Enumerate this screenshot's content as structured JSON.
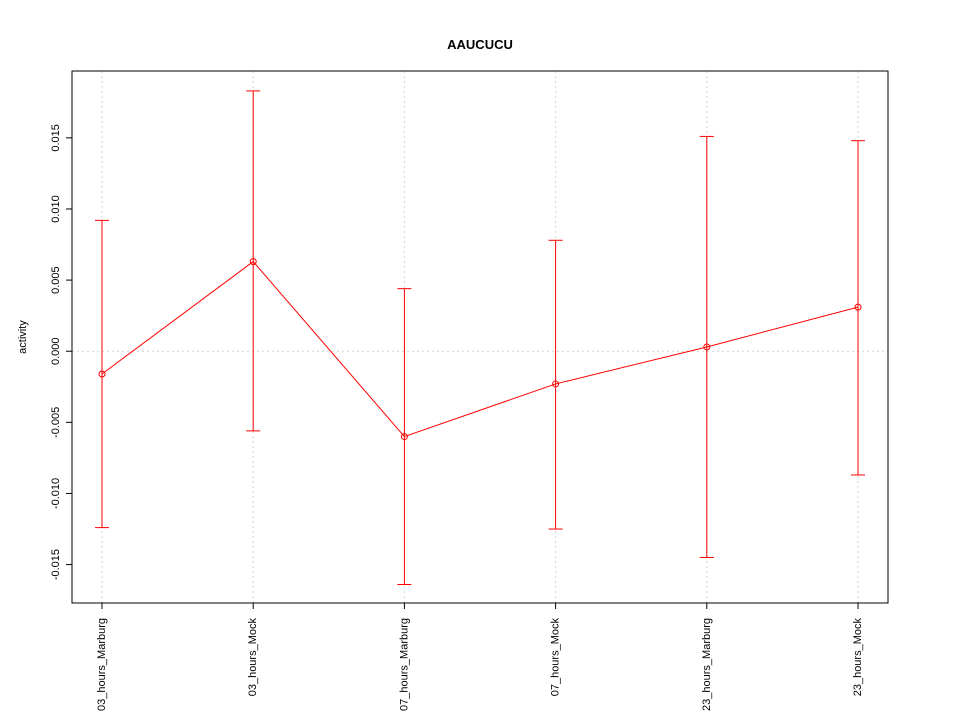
{
  "chart_data": {
    "type": "line",
    "title": "AAUCUCU",
    "xlabel": "",
    "ylabel": "activity",
    "categories": [
      "03_hours_Marburg",
      "03_hours_Mock",
      "07_hours_Marburg",
      "07_hours_Mock",
      "23_hours_Marburg",
      "23_hours_Mock"
    ],
    "series": [
      {
        "values": [
          -0.0016,
          0.0063,
          -0.006,
          -0.0023,
          0.0003,
          0.0031
        ],
        "error_low": [
          -0.0124,
          -0.0056,
          -0.0164,
          -0.0125,
          -0.0145,
          -0.0087
        ],
        "error_high": [
          0.0092,
          0.0183,
          0.0044,
          0.0078,
          0.0151,
          0.0148
        ],
        "color": "#ff0000"
      }
    ],
    "yticks": [
      -0.015,
      -0.01,
      -0.005,
      0.0,
      0.005,
      0.01,
      0.015
    ],
    "ytick_labels": [
      "-0.015",
      "-0.010",
      "-0.005",
      "0.000",
      "0.005",
      "0.010",
      "0.015"
    ],
    "ylim": [
      -0.0177,
      0.0197
    ],
    "grid": true,
    "colors": {
      "series": "#ff0000",
      "grid": "#d3d3d3",
      "axis": "#000000"
    }
  }
}
